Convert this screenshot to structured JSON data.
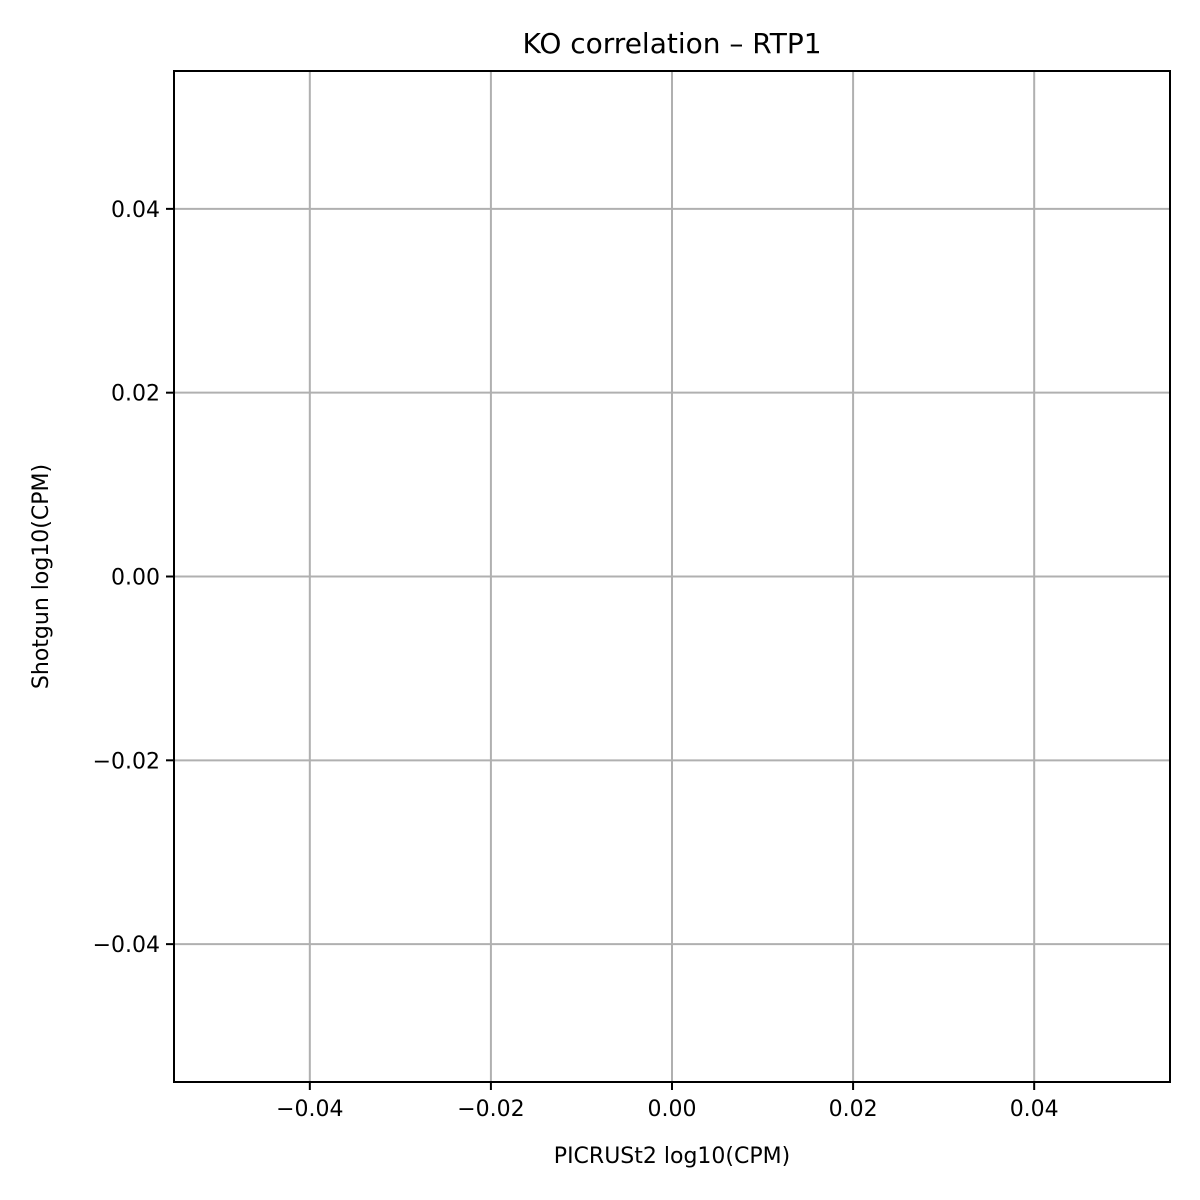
{
  "chart_data": {
    "type": "scatter",
    "title": "KO correlation – RTP1",
    "xlabel": "PICRUSt2 log10(CPM)",
    "ylabel": "Shotgun log10(CPM)",
    "xlim": [
      -0.055,
      0.055
    ],
    "ylim": [
      -0.055,
      0.055
    ],
    "x_ticks": [
      -0.04,
      -0.02,
      0.0,
      0.02,
      0.04
    ],
    "x_tick_labels": [
      "−0.04",
      "−0.02",
      "0.00",
      "0.02",
      "0.04"
    ],
    "y_ticks": [
      -0.04,
      -0.02,
      0.0,
      0.02,
      0.04
    ],
    "y_tick_labels": [
      "−0.04",
      "−0.02",
      "0.00",
      "0.02",
      "0.04"
    ],
    "grid": true,
    "series": [
      {
        "x": [],
        "y": []
      }
    ]
  },
  "colors": {
    "grid": "#b0b0b0",
    "axes": "#000000",
    "background": "#ffffff"
  }
}
